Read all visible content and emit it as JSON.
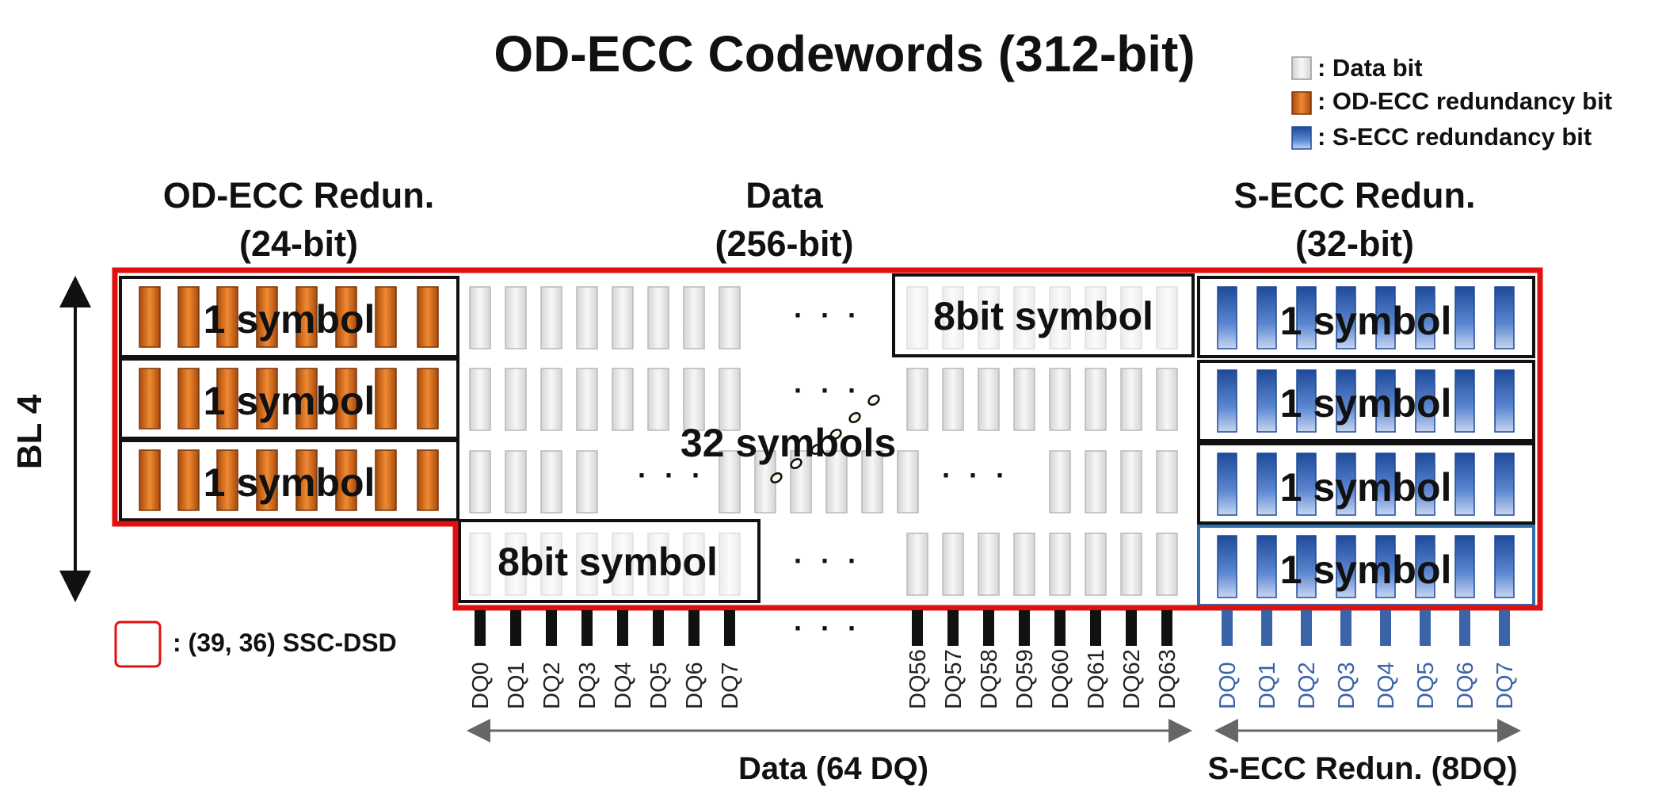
{
  "title": "OD-ECC Codewords (312-bit)",
  "legend": [
    {
      "label": ": Data bit",
      "color": "#e3e3e3",
      "icon": "data-bit-swatch-icon"
    },
    {
      "label": ": OD-ECC redundancy bit",
      "color": "#e87722",
      "icon": "od-ecc-bit-swatch-icon"
    },
    {
      "label": ": S-ECC redundancy bit",
      "color": "#3f69b5",
      "icon": "s-ecc-bit-swatch-icon"
    }
  ],
  "sections": {
    "od_ecc": {
      "line1": "OD-ECC Redun.",
      "line2": "(24-bit)"
    },
    "data": {
      "line1": "Data",
      "line2": "(256-bit)"
    },
    "s_ecc": {
      "line1": "S-ECC Redun.",
      "line2": "(32-bit)"
    }
  },
  "bl_label": "BL 4",
  "symbol_label": "1 symbol",
  "eight_bit_symbol": "8bit symbol",
  "thirty_two_symbols": "32 symbols",
  "ellipsis": "· · ·",
  "ssc_label": ": (39, 36) SSC-DSD",
  "dq_left": [
    "DQ0",
    "DQ1",
    "DQ2",
    "DQ3",
    "DQ4",
    "DQ5",
    "DQ6",
    "DQ7"
  ],
  "dq_right": [
    "DQ56",
    "DQ57",
    "DQ58",
    "DQ59",
    "DQ60",
    "DQ61",
    "DQ62",
    "DQ63"
  ],
  "dq_secc": [
    "DQ0",
    "DQ1",
    "DQ2",
    "DQ3",
    "DQ4",
    "DQ5",
    "DQ6",
    "DQ7"
  ],
  "data_axis": "Data (64 DQ)",
  "secc_axis": "S-ECC Redun. (8DQ)",
  "colors": {
    "boundary_red": "#e01010",
    "od_ecc_orange": "#e87722",
    "s_ecc_blue": "#3f69b5",
    "data_gray": "#e3e3e3",
    "dq_blue": "#3a63a8"
  }
}
